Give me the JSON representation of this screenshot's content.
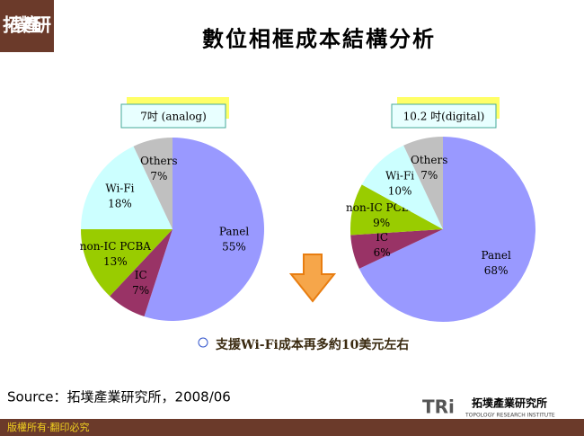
{
  "header": {
    "title": "數位相框成本結構分析",
    "logo": "拓墣產研"
  },
  "chart_data": [
    {
      "type": "pie",
      "title": "7吋 (analog)",
      "categories": [
        "Panel",
        "IC",
        "non-IC PCBA",
        "Wi-Fi",
        "Others"
      ],
      "values": [
        55,
        7,
        13,
        18,
        7
      ],
      "value_labels": [
        "55%",
        "7%",
        "13%",
        "18%",
        "7%"
      ],
      "colors": [
        "#9999ff",
        "#993366",
        "#99cc00",
        "#ccffff",
        "#c0c0c0"
      ]
    },
    {
      "type": "pie",
      "title": "10.2 吋(digital)",
      "categories": [
        "Panel",
        "IC",
        "non-IC PCBA",
        "Wi-Fi",
        "Others"
      ],
      "values": [
        68,
        6,
        9,
        10,
        7
      ],
      "value_labels": [
        "68%",
        "6%",
        "9%",
        "10%",
        "7%"
      ],
      "colors": [
        "#9999ff",
        "#993366",
        "#99cc00",
        "#ccffff",
        "#c0c0c0"
      ]
    }
  ],
  "note": "支援Wi-Fi成本再多約10美元左右",
  "source": "Source：拓墣產業研究所，2008/06",
  "footer": {
    "copyright": "版權所有‧翻印必究",
    "brand": "TRi",
    "company": "拓墣產業研究所",
    "company_en": "TOPOLOGY RESEARCH INSTITUTE"
  }
}
